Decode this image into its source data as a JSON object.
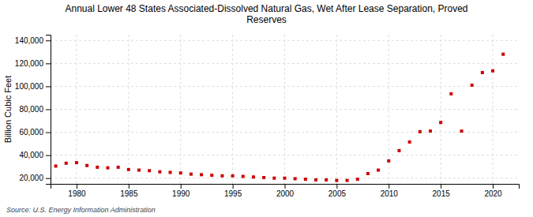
{
  "chart_data": {
    "type": "scatter",
    "title": "Annual Lower 48 States Associated-Dissolved Natural Gas, Wet After Lease Separation, Proved\nReserves",
    "ylabel": "Billion Cubic Feet",
    "annotations": [
      "Source: U.S. Energy Information Administration"
    ],
    "color": "#cc0000",
    "marker": "square",
    "grid": true,
    "x": [
      1978,
      1979,
      1980,
      1981,
      1982,
      1983,
      1984,
      1985,
      1986,
      1987,
      1988,
      1989,
      1990,
      1991,
      1992,
      1993,
      1994,
      1995,
      1996,
      1997,
      1998,
      1999,
      2000,
      2001,
      2002,
      2003,
      2004,
      2005,
      2006,
      2007,
      2008,
      2009,
      2010,
      2011,
      2012,
      2013,
      2014,
      2015,
      2016,
      2017,
      2018,
      2019,
      2020,
      2021
    ],
    "values": [
      30500,
      33000,
      33500,
      31000,
      29500,
      29000,
      29500,
      27500,
      27000,
      26500,
      25500,
      25000,
      24500,
      23500,
      23000,
      22500,
      22000,
      22000,
      21500,
      21000,
      20500,
      20000,
      20000,
      19500,
      19000,
      18500,
      18500,
      18000,
      18000,
      19000,
      24000,
      27000,
      35000,
      44000,
      51500,
      60500,
      61000,
      68500,
      93500,
      61000,
      101000,
      112000,
      113500,
      128000
    ],
    "xlim": [
      1977.5,
      2022.5
    ],
    "xticks": [
      1980,
      1985,
      1990,
      1995,
      2000,
      2005,
      2010,
      2015,
      2020
    ],
    "ylim": [
      15000,
      145000
    ],
    "yticks": [
      {
        "value": 20000,
        "label": "20,000"
      },
      {
        "value": 40000,
        "label": "40,000"
      },
      {
        "value": 60000,
        "label": "60,000"
      },
      {
        "value": 80000,
        "label": "80,000"
      },
      {
        "value": 100000,
        "label": "100,000"
      },
      {
        "value": 120000,
        "label": "120,000"
      },
      {
        "value": 140000,
        "label": "140,000"
      }
    ]
  }
}
